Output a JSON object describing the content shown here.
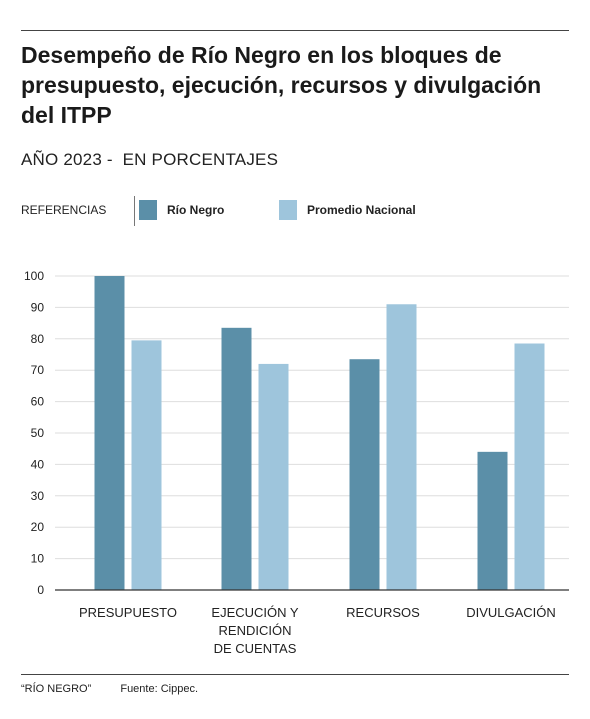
{
  "header": {
    "title": "Desempeño de Río Negro en los bloques de presupuesto, ejecución, recursos y divulgación del ITPP",
    "subtitle": "AÑO 2023 -  EN PORCENTAJES"
  },
  "legend": {
    "label": "REFERENCIAS"
  },
  "colors": {
    "rio_negro": "#5b8fa8",
    "promedio_nacional": "#9ec5dc",
    "grid": "#dedede",
    "axis": "#333333"
  },
  "chart_data": {
    "type": "bar",
    "categories": [
      "PRESUPUESTO",
      "EJECUCIÓN Y\nRENDICIÓN\nDE CUENTAS",
      "RECURSOS",
      "DIVULGACIÓN"
    ],
    "series": [
      {
        "name": "Río Negro",
        "values": [
          100,
          83.5,
          73.5,
          44
        ]
      },
      {
        "name": "Promedio Nacional",
        "values": [
          79.5,
          72,
          91,
          78.5
        ]
      }
    ],
    "yticks": [
      "0",
      "10",
      "20",
      "30",
      "40",
      "50",
      "60",
      "70",
      "80",
      "90",
      "100"
    ],
    "ylim": [
      0,
      100
    ],
    "grid": true,
    "legend_position": "top-left"
  },
  "footer": {
    "note": "“RÍO NEGRO”",
    "source": "Fuente: Cippec."
  }
}
